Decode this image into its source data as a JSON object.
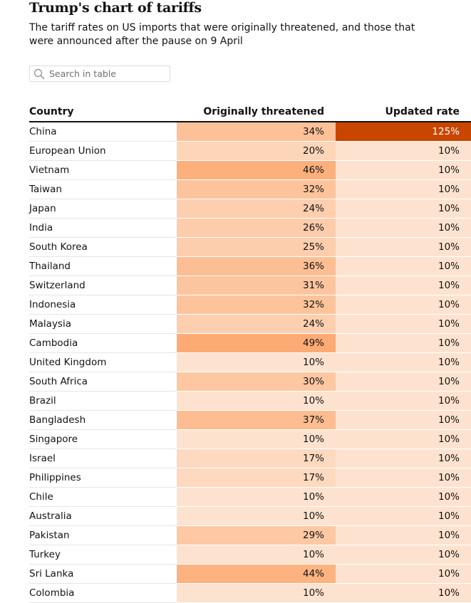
{
  "chart_data": {
    "type": "table",
    "title": "Trump's chart of tariffs",
    "subtitle": "The tariff rates on US imports that were originally threatened, and those that were announced after the pause on 9 April",
    "columns": [
      "Country",
      "Originally threatened",
      "Updated rate"
    ],
    "rows": [
      {
        "country": "China",
        "original": 34,
        "updated": 125,
        "original_label": "34%",
        "updated_label": "125%"
      },
      {
        "country": "European Union",
        "original": 20,
        "updated": 10,
        "original_label": "20%",
        "updated_label": "10%"
      },
      {
        "country": "Vietnam",
        "original": 46,
        "updated": 10,
        "original_label": "46%",
        "updated_label": "10%"
      },
      {
        "country": "Taiwan",
        "original": 32,
        "updated": 10,
        "original_label": "32%",
        "updated_label": "10%"
      },
      {
        "country": "Japan",
        "original": 24,
        "updated": 10,
        "original_label": "24%",
        "updated_label": "10%"
      },
      {
        "country": "India",
        "original": 26,
        "updated": 10,
        "original_label": "26%",
        "updated_label": "10%"
      },
      {
        "country": "South Korea",
        "original": 25,
        "updated": 10,
        "original_label": "25%",
        "updated_label": "10%"
      },
      {
        "country": "Thailand",
        "original": 36,
        "updated": 10,
        "original_label": "36%",
        "updated_label": "10%"
      },
      {
        "country": "Switzerland",
        "original": 31,
        "updated": 10,
        "original_label": "31%",
        "updated_label": "10%"
      },
      {
        "country": "Indonesia",
        "original": 32,
        "updated": 10,
        "original_label": "32%",
        "updated_label": "10%"
      },
      {
        "country": "Malaysia",
        "original": 24,
        "updated": 10,
        "original_label": "24%",
        "updated_label": "10%"
      },
      {
        "country": "Cambodia",
        "original": 49,
        "updated": 10,
        "original_label": "49%",
        "updated_label": "10%"
      },
      {
        "country": "United Kingdom",
        "original": 10,
        "updated": 10,
        "original_label": "10%",
        "updated_label": "10%"
      },
      {
        "country": "South Africa",
        "original": 30,
        "updated": 10,
        "original_label": "30%",
        "updated_label": "10%"
      },
      {
        "country": "Brazil",
        "original": 10,
        "updated": 10,
        "original_label": "10%",
        "updated_label": "10%"
      },
      {
        "country": "Bangladesh",
        "original": 37,
        "updated": 10,
        "original_label": "37%",
        "updated_label": "10%"
      },
      {
        "country": "Singapore",
        "original": 10,
        "updated": 10,
        "original_label": "10%",
        "updated_label": "10%"
      },
      {
        "country": "Israel",
        "original": 17,
        "updated": 10,
        "original_label": "17%",
        "updated_label": "10%"
      },
      {
        "country": "Philippines",
        "original": 17,
        "updated": 10,
        "original_label": "17%",
        "updated_label": "10%"
      },
      {
        "country": "Chile",
        "original": 10,
        "updated": 10,
        "original_label": "10%",
        "updated_label": "10%"
      },
      {
        "country": "Australia",
        "original": 10,
        "updated": 10,
        "original_label": "10%",
        "updated_label": "10%"
      },
      {
        "country": "Pakistan",
        "original": 29,
        "updated": 10,
        "original_label": "29%",
        "updated_label": "10%"
      },
      {
        "country": "Turkey",
        "original": 10,
        "updated": 10,
        "original_label": "10%",
        "updated_label": "10%"
      },
      {
        "country": "Sri Lanka",
        "original": 44,
        "updated": 10,
        "original_label": "44%",
        "updated_label": "10%"
      },
      {
        "country": "Colombia",
        "original": 10,
        "updated": 10,
        "original_label": "10%",
        "updated_label": "10%"
      }
    ],
    "color_scale": {
      "low": "#fde3cf",
      "mid": "#fdaa73",
      "high": "#c84600",
      "text_on_dark": "#ffffff",
      "text_on_light": "#121212"
    }
  },
  "search": {
    "placeholder": "Search in table",
    "icon": "search-icon"
  }
}
